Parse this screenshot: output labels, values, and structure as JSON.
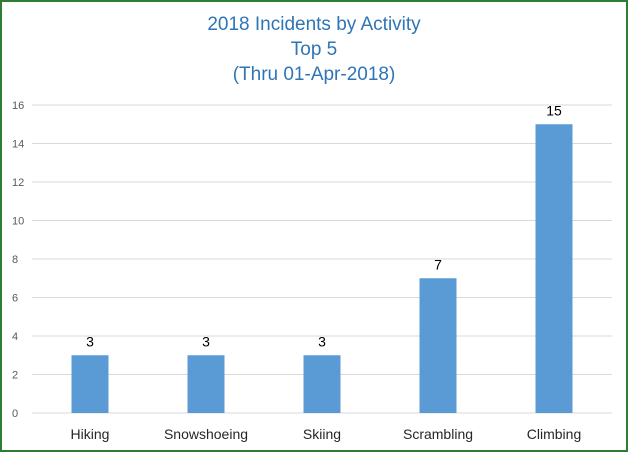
{
  "chart_data": {
    "type": "bar",
    "title": [
      "2018 Incidents by Activity",
      "Top 5",
      "(Thru 01-Apr-2018)"
    ],
    "categories": [
      "Hiking",
      "Snowshoeing",
      "Skiing",
      "Scrambling",
      "Climbing"
    ],
    "values": [
      3,
      3,
      3,
      7,
      15
    ],
    "ylim": [
      0,
      16
    ],
    "yticks": [
      0,
      2,
      4,
      6,
      8,
      10,
      12,
      14,
      16
    ],
    "grid": true,
    "data_labels": true,
    "colors": {
      "bar": "#5b9bd5",
      "title": "#2e75b6",
      "border": "#2e7d32",
      "grid": "#d9d9d9"
    }
  }
}
